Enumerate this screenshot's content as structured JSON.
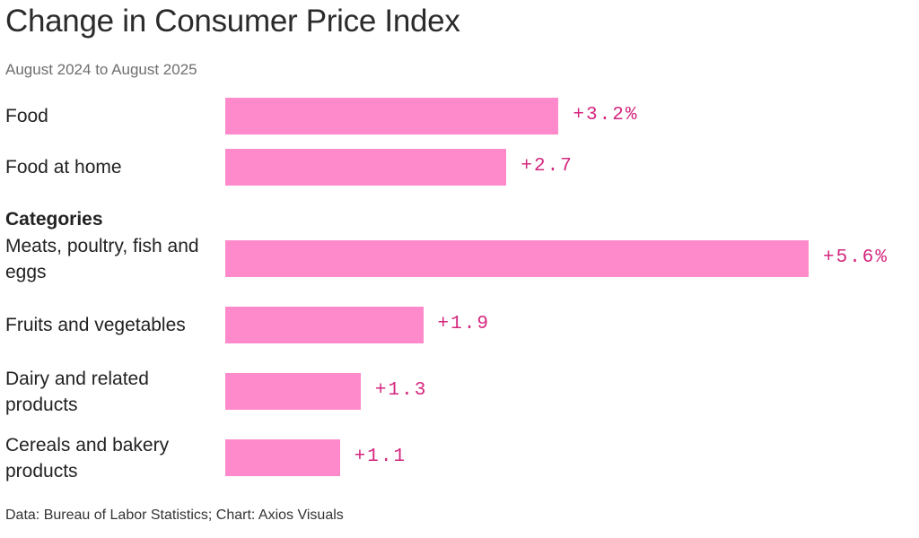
{
  "chart_data": {
    "type": "bar",
    "orientation": "horizontal",
    "title": "Change in Consumer Price Index",
    "subtitle": "August 2024 to August 2025",
    "section_label": "Categories",
    "categories": [
      "Food",
      "Food at home",
      "Meats, poultry, fish and eggs",
      "Fruits and vegetables",
      "Dairy and related products",
      "Cereals and bakery products"
    ],
    "values": [
      3.2,
      2.7,
      5.6,
      1.9,
      1.3,
      1.1
    ],
    "value_labels": [
      "+3.2%",
      "+2.7",
      "+5.6%",
      "+1.9",
      "+1.3",
      "+1.1"
    ],
    "unit": "%",
    "xlim": [
      0,
      5.6
    ],
    "grid": false,
    "legend": "none",
    "bar_color": "#ff8acb",
    "label_color": "#d4267e"
  },
  "footer": "Data: Bureau of Labor Statistics; Chart: Axios Visuals"
}
